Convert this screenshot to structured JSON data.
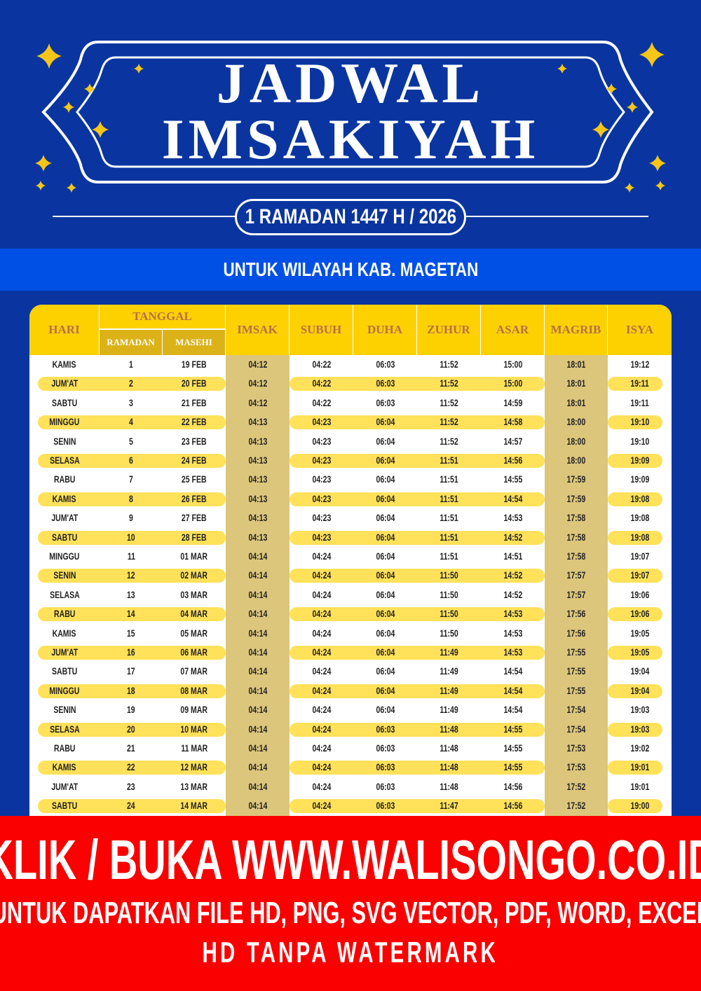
{
  "title": {
    "line1": "JADWAL",
    "line2": "IMSAKIYAH",
    "subtitle": "1 RAMADAN 1447 H / 2026"
  },
  "region": "UNTUK WILAYAH KAB. MAGETAN",
  "colors": {
    "background": "#0a35a0",
    "band": "#0050e6",
    "header": "#fdd100",
    "stripe": "#ffe15a",
    "highlight_col": "#dcc67c",
    "footer": "#fa0000",
    "star": "#f5c518"
  },
  "table": {
    "headers": {
      "hari": "HARI",
      "tanggal": "TANGGAL",
      "ramadan": "RAMADAN",
      "masehi": "MASEHI",
      "imsak": "IMSAK",
      "subuh": "SUBUH",
      "duha": "DUHA",
      "zuhur": "ZUHUR",
      "asar": "ASAR",
      "magrib": "MAGRIB",
      "isya": "ISYA"
    },
    "rows": [
      [
        "KAMIS",
        "1",
        "19 FEB",
        "04:12",
        "04:22",
        "06:03",
        "11:52",
        "15:00",
        "18:01",
        "19:12"
      ],
      [
        "JUM'AT",
        "2",
        "20 FEB",
        "04:12",
        "04:22",
        "06:03",
        "11:52",
        "15:00",
        "18:01",
        "19:11"
      ],
      [
        "SABTU",
        "3",
        "21 FEB",
        "04:12",
        "04:22",
        "06:03",
        "11:52",
        "14:59",
        "18:01",
        "19:11"
      ],
      [
        "MINGGU",
        "4",
        "22 FEB",
        "04:13",
        "04:23",
        "06:04",
        "11:52",
        "14:58",
        "18:00",
        "19:10"
      ],
      [
        "SENIN",
        "5",
        "23 FEB",
        "04:13",
        "04:23",
        "06:04",
        "11:52",
        "14:57",
        "18:00",
        "19:10"
      ],
      [
        "SELASA",
        "6",
        "24 FEB",
        "04:13",
        "04:23",
        "06:04",
        "11:51",
        "14:56",
        "18:00",
        "19:09"
      ],
      [
        "RABU",
        "7",
        "25 FEB",
        "04:13",
        "04:23",
        "06:04",
        "11:51",
        "14:55",
        "17:59",
        "19:09"
      ],
      [
        "KAMIS",
        "8",
        "26 FEB",
        "04:13",
        "04:23",
        "06:04",
        "11:51",
        "14:54",
        "17:59",
        "19:08"
      ],
      [
        "JUM'AT",
        "9",
        "27 FEB",
        "04:13",
        "04:23",
        "06:04",
        "11:51",
        "14:53",
        "17:58",
        "19:08"
      ],
      [
        "SABTU",
        "10",
        "28 FEB",
        "04:13",
        "04:23",
        "06:04",
        "11:51",
        "14:52",
        "17:58",
        "19:08"
      ],
      [
        "MINGGU",
        "11",
        "01 MAR",
        "04:14",
        "04:24",
        "06:04",
        "11:51",
        "14:51",
        "17:58",
        "19:07"
      ],
      [
        "SENIN",
        "12",
        "02 MAR",
        "04:14",
        "04:24",
        "06:04",
        "11:50",
        "14:52",
        "17:57",
        "19:07"
      ],
      [
        "SELASA",
        "13",
        "03 MAR",
        "04:14",
        "04:24",
        "06:04",
        "11:50",
        "14:52",
        "17:57",
        "19:06"
      ],
      [
        "RABU",
        "14",
        "04 MAR",
        "04:14",
        "04:24",
        "06:04",
        "11:50",
        "14:53",
        "17:56",
        "19:06"
      ],
      [
        "KAMIS",
        "15",
        "05 MAR",
        "04:14",
        "04:24",
        "06:04",
        "11:50",
        "14:53",
        "17:56",
        "19:05"
      ],
      [
        "JUM'AT",
        "16",
        "06 MAR",
        "04:14",
        "04:24",
        "06:04",
        "11:49",
        "14:53",
        "17:55",
        "19:05"
      ],
      [
        "SABTU",
        "17",
        "07 MAR",
        "04:14",
        "04:24",
        "06:04",
        "11:49",
        "14:54",
        "17:55",
        "19:04"
      ],
      [
        "MINGGU",
        "18",
        "08 MAR",
        "04:14",
        "04:24",
        "06:04",
        "11:49",
        "14:54",
        "17:55",
        "19:04"
      ],
      [
        "SENIN",
        "19",
        "09 MAR",
        "04:14",
        "04:24",
        "06:04",
        "11:49",
        "14:54",
        "17:54",
        "19:03"
      ],
      [
        "SELASA",
        "20",
        "10 MAR",
        "04:14",
        "04:24",
        "06:03",
        "11:48",
        "14:55",
        "17:54",
        "19:03"
      ],
      [
        "RABU",
        "21",
        "11 MAR",
        "04:14",
        "04:24",
        "06:03",
        "11:48",
        "14:55",
        "17:53",
        "19:02"
      ],
      [
        "KAMIS",
        "22",
        "12 MAR",
        "04:14",
        "04:24",
        "06:03",
        "11:48",
        "14:55",
        "17:53",
        "19:01"
      ],
      [
        "JUM'AT",
        "23",
        "13 MAR",
        "04:14",
        "04:24",
        "06:03",
        "11:48",
        "14:56",
        "17:52",
        "19:01"
      ],
      [
        "SABTU",
        "24",
        "14 MAR",
        "04:14",
        "04:24",
        "06:03",
        "11:47",
        "14:56",
        "17:52",
        "19:00"
      ]
    ]
  },
  "footer": {
    "line1": "KLIK / BUKA WWW.WALISONGO.CO.ID",
    "line2": "UNTUK DAPATKAN FILE HD, PNG, SVG VECTOR, PDF, WORD, EXCEL",
    "line3": "HD TANPA WATERMARK"
  }
}
